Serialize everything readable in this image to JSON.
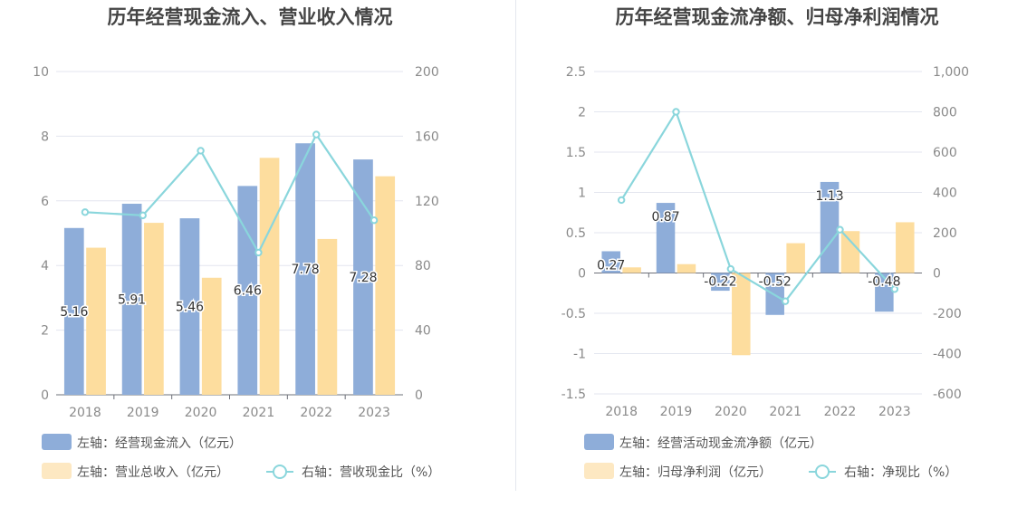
{
  "colors": {
    "bar_blue": "#8eadd9",
    "bar_orange": "#fddd9e",
    "line_teal": "#8ad6dc",
    "grid": "#e3e6ef",
    "axis_text": "#8a8a8a",
    "title_text": "#444444",
    "label_text": "#333333"
  },
  "chart_data": [
    {
      "type": "bar",
      "title": "历年经营现金流入、营业收入情况",
      "categories": [
        "2018",
        "2019",
        "2020",
        "2021",
        "2022",
        "2023"
      ],
      "y_left_lim": [
        0,
        10
      ],
      "y_left_ticks": [
        "0",
        "2",
        "4",
        "6",
        "8",
        "10"
      ],
      "y_right_lim": [
        0,
        200
      ],
      "y_right_ticks": [
        "0",
        "40",
        "80",
        "120",
        "160",
        "200"
      ],
      "grid": true,
      "legend_position": "bottom-left",
      "series": [
        {
          "name": "左轴：经营现金流入（亿元）",
          "kind": "bar",
          "axis": "left",
          "values": [
            5.16,
            5.91,
            5.46,
            6.46,
            7.78,
            7.28
          ],
          "labels": [
            "5.16",
            "5.91",
            "5.46",
            "6.46",
            "7.78",
            "7.28"
          ]
        },
        {
          "name": "左轴：营业总收入（亿元）",
          "kind": "bar",
          "axis": "left",
          "values": [
            4.55,
            5.32,
            3.62,
            7.33,
            4.82,
            6.76
          ]
        },
        {
          "name": "右轴：营收现金比（%）",
          "kind": "line",
          "axis": "right",
          "values": [
            113,
            111,
            151,
            88,
            161,
            108
          ]
        }
      ]
    },
    {
      "type": "bar",
      "title": "历年经营现金流净额、归母净利润情况",
      "categories": [
        "2018",
        "2019",
        "2020",
        "2021",
        "2022",
        "2023"
      ],
      "y_left_lim": [
        -1.5,
        2.5
      ],
      "y_left_ticks": [
        "-1.5",
        "-1",
        "-0.5",
        "0",
        "0.5",
        "1",
        "1.5",
        "2",
        "2.5"
      ],
      "y_right_lim": [
        -600,
        1000
      ],
      "y_right_ticks": [
        "-600",
        "-400",
        "-200",
        "0",
        "200",
        "400",
        "600",
        "800",
        "1,000"
      ],
      "grid": true,
      "legend_position": "bottom-left",
      "series": [
        {
          "name": "左轴：经营活动现金流净额（亿元）",
          "kind": "bar",
          "axis": "left",
          "values": [
            0.27,
            0.87,
            -0.22,
            -0.52,
            1.13,
            -0.48
          ],
          "labels": [
            "0.27",
            "0.87",
            "-0.22",
            "-0.52",
            "1.13",
            "-0.48"
          ]
        },
        {
          "name": "左轴：归母净利润（亿元）",
          "kind": "bar",
          "axis": "left",
          "values": [
            0.07,
            0.11,
            -1.02,
            0.37,
            0.52,
            0.63
          ]
        },
        {
          "name": "右轴：净现比（%）",
          "kind": "line",
          "axis": "right",
          "values": [
            362,
            800,
            20,
            -140,
            215,
            -80
          ]
        }
      ]
    }
  ]
}
